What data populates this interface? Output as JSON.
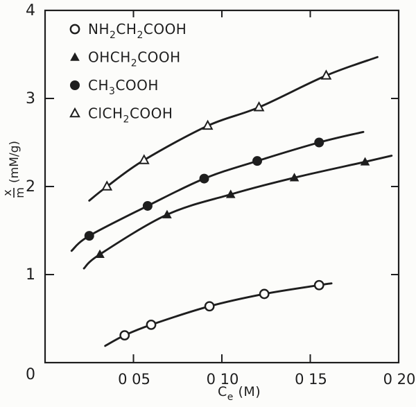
{
  "figure": {
    "background": "#fcfcfa",
    "ink_color": "#1e1e1e"
  },
  "chart_data": {
    "type": "scatter",
    "title": "",
    "xlabel": "Ce (M)",
    "xlabel_segments": [
      [
        "C",
        0
      ],
      [
        "e",
        1
      ],
      [
        " (M)",
        0
      ]
    ],
    "ylabel": "x/m (mM/g)",
    "ylabel_fraction": {
      "numerator": "x",
      "denominator": "m",
      "units": "(mM/g)"
    },
    "xlim": [
      0,
      0.2
    ],
    "ylim": [
      0,
      4
    ],
    "grid": false,
    "legend_position": "upper-left-inside",
    "origin_label": "0",
    "x_ticks": [
      {
        "v": 0.05,
        "label": "0 05"
      },
      {
        "v": 0.1,
        "label": "0 10"
      },
      {
        "v": 0.15,
        "label": "0 15"
      },
      {
        "v": 0.2,
        "label": "0 20"
      }
    ],
    "y_ticks": [
      {
        "v": 1,
        "label": "1"
      },
      {
        "v": 2,
        "label": "2"
      },
      {
        "v": 3,
        "label": "3"
      },
      {
        "v": 4,
        "label": "4"
      }
    ],
    "series": [
      {
        "name": "NH2CH2COOH",
        "label_segments": [
          [
            "NH",
            0
          ],
          [
            "2",
            1
          ],
          [
            "CH",
            0
          ],
          [
            "2",
            1
          ],
          [
            "COOH",
            0
          ]
        ],
        "marker": "circle-open",
        "points": [
          [
            0.045,
            0.31
          ],
          [
            0.06,
            0.43
          ],
          [
            0.093,
            0.64
          ],
          [
            0.124,
            0.78
          ],
          [
            0.155,
            0.88
          ]
        ],
        "curve_start": [
          0.034,
          0.19
        ],
        "curve_end": [
          0.162,
          0.9
        ]
      },
      {
        "name": "OHCH2COOH",
        "label_segments": [
          [
            "OHCH",
            0
          ],
          [
            "2",
            1
          ],
          [
            "COOH",
            0
          ]
        ],
        "marker": "triangle-filled",
        "points": [
          [
            0.031,
            1.23
          ],
          [
            0.069,
            1.68
          ],
          [
            0.105,
            1.91
          ],
          [
            0.141,
            2.1
          ],
          [
            0.181,
            2.28
          ]
        ],
        "curve_start": [
          0.022,
          1.07
        ],
        "curve_end": [
          0.196,
          2.35
        ]
      },
      {
        "name": "CH3COOH",
        "label_segments": [
          [
            "CH",
            0
          ],
          [
            "3",
            1
          ],
          [
            "COOH",
            0
          ]
        ],
        "marker": "circle-filled",
        "points": [
          [
            0.025,
            1.44
          ],
          [
            0.058,
            1.78
          ],
          [
            0.09,
            2.09
          ],
          [
            0.12,
            2.29
          ],
          [
            0.155,
            2.5
          ]
        ],
        "curve_start": [
          0.015,
          1.27
        ],
        "curve_end": [
          0.18,
          2.62
        ]
      },
      {
        "name": "ClCH2COOH",
        "label_segments": [
          [
            "ClCH",
            0
          ],
          [
            "2",
            1
          ],
          [
            "COOH",
            0
          ]
        ],
        "marker": "triangle-open",
        "points": [
          [
            0.035,
            2.0
          ],
          [
            0.056,
            2.3
          ],
          [
            0.092,
            2.69
          ],
          [
            0.121,
            2.9
          ],
          [
            0.159,
            3.26
          ]
        ],
        "curve_start": [
          0.025,
          1.84
        ],
        "curve_end": [
          0.188,
          3.47
        ]
      }
    ]
  }
}
